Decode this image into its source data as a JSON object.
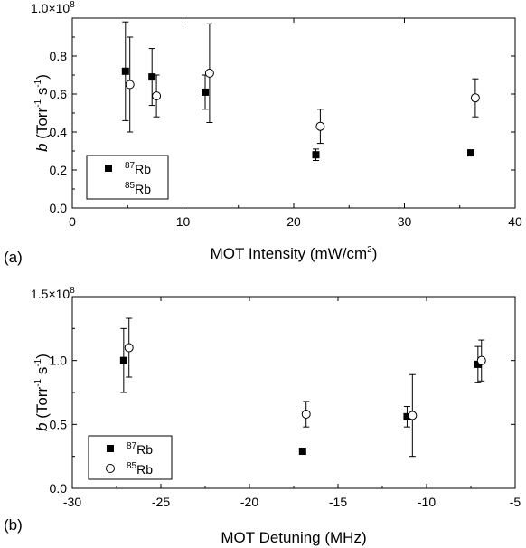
{
  "chart_data": [
    {
      "type": "scatter",
      "panel_label": "(a)",
      "xlabel": "MOT Intensity (mW/cm²)",
      "xlabel_main": "MOT Intensity (mW/cm",
      "xlabel_sup": "2",
      "xlabel_end": ")",
      "ylabel": "b (Torr⁻¹ s⁻¹)",
      "xlim": [
        0,
        40
      ],
      "ylim": [
        0.0,
        1.0
      ],
      "y_multiplier": "1.0×10",
      "y_multiplier_exp": "8",
      "xticks": [
        "0",
        "10",
        "20",
        "30",
        "40"
      ],
      "yticks": [
        "0.0",
        "0.2",
        "0.4",
        "0.6",
        "0.8"
      ],
      "legend_position": "bottom-left",
      "series": [
        {
          "name": "87Rb",
          "iso": "87",
          "marker": "filled-square",
          "points": [
            {
              "x": 4.8,
              "y": 0.72,
              "ylo": 0.46,
              "yhi": 0.98
            },
            {
              "x": 7.2,
              "y": 0.69,
              "ylo": 0.54,
              "yhi": 0.84
            },
            {
              "x": 12.0,
              "y": 0.61,
              "ylo": 0.52,
              "yhi": 0.7
            },
            {
              "x": 22.0,
              "y": 0.28,
              "ylo": 0.25,
              "yhi": 0.31
            },
            {
              "x": 36.0,
              "y": 0.29,
              "ylo": 0.28,
              "yhi": 0.3
            }
          ]
        },
        {
          "name": "85Rb",
          "iso": "85",
          "marker": "open-circle",
          "points": [
            {
              "x": 5.2,
              "y": 0.65,
              "ylo": 0.4,
              "yhi": 0.9
            },
            {
              "x": 7.6,
              "y": 0.59,
              "ylo": 0.48,
              "yhi": 0.7
            },
            {
              "x": 12.4,
              "y": 0.71,
              "ylo": 0.45,
              "yhi": 0.97
            },
            {
              "x": 22.4,
              "y": 0.43,
              "ylo": 0.34,
              "yhi": 0.52
            },
            {
              "x": 36.4,
              "y": 0.58,
              "ylo": 0.48,
              "yhi": 0.68
            }
          ]
        }
      ]
    },
    {
      "type": "scatter",
      "panel_label": "(b)",
      "xlabel": "MOT Detuning (MHz)",
      "ylabel": "b (Torr⁻¹ s⁻¹)",
      "xlim": [
        -30,
        -5
      ],
      "ylim": [
        0.0,
        1.5
      ],
      "y_multiplier": "1.5×10",
      "y_multiplier_exp": "8",
      "xticks": [
        "-30",
        "-25",
        "-20",
        "-15",
        "-10",
        "-5"
      ],
      "yticks": [
        "0.0",
        "0.5",
        "1.0"
      ],
      "legend_position": "bottom-left",
      "series": [
        {
          "name": "87Rb",
          "iso": "87",
          "marker": "filled-square",
          "points": [
            {
              "x": -27.1,
              "y": 1.0,
              "ylo": 0.75,
              "yhi": 1.25
            },
            {
              "x": -17.0,
              "y": 0.29,
              "ylo": 0.28,
              "yhi": 0.3
            },
            {
              "x": -11.1,
              "y": 0.56,
              "ylo": 0.48,
              "yhi": 0.64
            },
            {
              "x": -7.1,
              "y": 0.97,
              "ylo": 0.83,
              "yhi": 1.11
            }
          ]
        },
        {
          "name": "85Rb",
          "iso": "85",
          "marker": "open-circle",
          "points": [
            {
              "x": -26.8,
              "y": 1.1,
              "ylo": 0.87,
              "yhi": 1.33
            },
            {
              "x": -16.8,
              "y": 0.58,
              "ylo": 0.48,
              "yhi": 0.68
            },
            {
              "x": -10.8,
              "y": 0.57,
              "ylo": 0.25,
              "yhi": 0.89
            },
            {
              "x": -6.9,
              "y": 1.0,
              "ylo": 0.84,
              "yhi": 1.16
            }
          ]
        }
      ]
    }
  ]
}
